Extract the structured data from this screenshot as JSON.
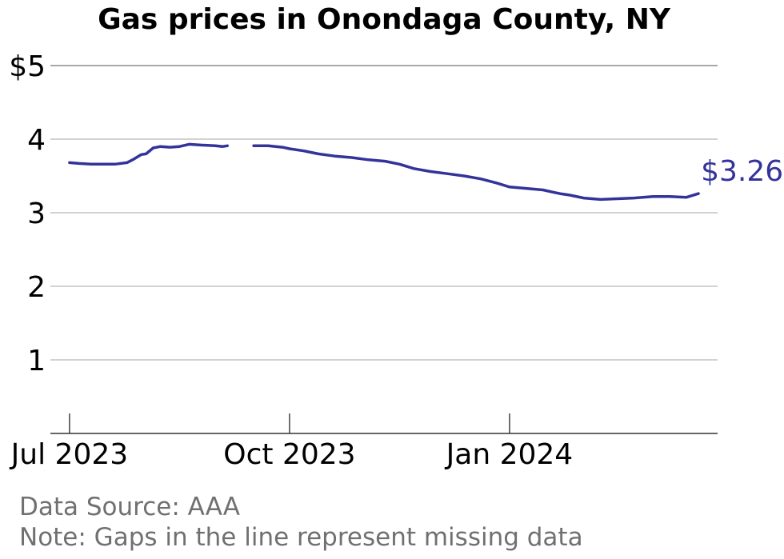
{
  "chart_data": {
    "type": "line",
    "title": "Gas prices in Onondaga County, NY",
    "y_tick_labels": [
      "1",
      "2",
      "3",
      "4",
      "$5"
    ],
    "y_ticks": [
      1,
      2,
      3,
      4,
      5
    ],
    "ylim": [
      0,
      5
    ],
    "x_tick_labels": [
      "Jul 2023",
      "Oct 2023",
      "Jan 2024"
    ],
    "x_ticks": [
      "2023-07-01",
      "2023-10-01",
      "2024-01-01"
    ],
    "xlim": [
      "2023-06-23",
      "2024-03-28"
    ],
    "grid": "horizontal",
    "line_color": "#33339a",
    "end_label": "$3.26",
    "series": [
      {
        "segments": [
          {
            "x": [
              "2023-07-01",
              "2023-07-05",
              "2023-07-10",
              "2023-07-15",
              "2023-07-20",
              "2023-07-25",
              "2023-07-28",
              "2023-07-31",
              "2023-08-02",
              "2023-08-05",
              "2023-08-08",
              "2023-08-12",
              "2023-08-16",
              "2023-08-20",
              "2023-08-25",
              "2023-08-31",
              "2023-09-03",
              "2023-09-05"
            ],
            "y": [
              3.68,
              3.67,
              3.66,
              3.66,
              3.66,
              3.68,
              3.73,
              3.79,
              3.8,
              3.88,
              3.9,
              3.89,
              3.9,
              3.93,
              3.92,
              3.91,
              3.9,
              3.91
            ]
          },
          {
            "x": [
              "2023-09-16",
              "2023-09-22",
              "2023-09-28",
              "2023-10-01",
              "2023-10-07",
              "2023-10-13",
              "2023-10-20",
              "2023-10-27",
              "2023-11-03",
              "2023-11-10",
              "2023-11-16",
              "2023-11-22",
              "2023-11-29",
              "2023-12-06",
              "2023-12-13",
              "2023-12-20",
              "2023-12-27",
              "2024-01-01",
              "2024-01-08",
              "2024-01-15",
              "2024-01-19",
              "2024-01-22",
              "2024-01-26",
              "2024-02-01",
              "2024-02-08",
              "2024-02-15",
              "2024-02-22",
              "2024-03-01",
              "2024-03-08",
              "2024-03-15",
              "2024-03-20"
            ],
            "y": [
              3.91,
              3.91,
              3.89,
              3.87,
              3.84,
              3.8,
              3.77,
              3.75,
              3.72,
              3.7,
              3.66,
              3.6,
              3.56,
              3.53,
              3.5,
              3.46,
              3.4,
              3.35,
              3.33,
              3.31,
              3.28,
              3.26,
              3.24,
              3.2,
              3.18,
              3.19,
              3.2,
              3.22,
              3.22,
              3.21,
              3.26
            ]
          }
        ]
      }
    ]
  },
  "footer": {
    "source": "Data Source: AAA",
    "note": "Note: Gaps in the line represent missing data"
  }
}
